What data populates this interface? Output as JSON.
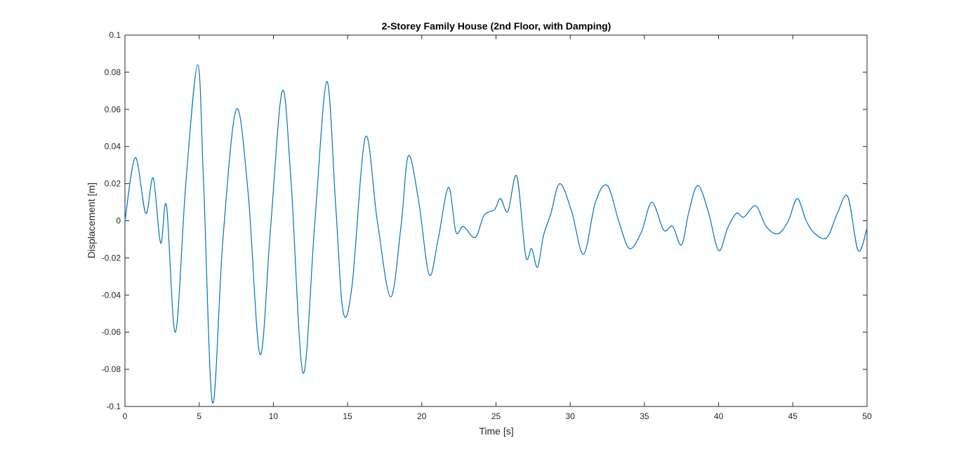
{
  "chart_data": {
    "type": "line",
    "title": "2-Storey Family House (2nd Floor, with Damping)",
    "xlabel": "Time [s]",
    "ylabel": "Displacement [m]",
    "xlim": [
      0,
      50
    ],
    "ylim": [
      -0.1,
      0.1
    ],
    "xticks": [
      0,
      5,
      10,
      15,
      20,
      25,
      30,
      35,
      40,
      45,
      50
    ],
    "yticks": [
      -0.1,
      -0.08,
      -0.06,
      -0.04,
      -0.02,
      0,
      0.02,
      0.04,
      0.06,
      0.08,
      0.1
    ],
    "xtick_labels": [
      "0",
      "5",
      "10",
      "15",
      "20",
      "25",
      "30",
      "35",
      "40",
      "45",
      "50"
    ],
    "ytick_labels": [
      "-0.1",
      "-0.08",
      "-0.06",
      "-0.04",
      "-0.02",
      "0",
      "0.02",
      "0.04",
      "0.06",
      "0.08",
      "0.1"
    ],
    "grid": false,
    "box": true,
    "series": [
      {
        "color": "#0072BD",
        "x": [
          0,
          0.7,
          1.4,
          1.9,
          2.4,
          2.8,
          3.4,
          4.1,
          4.9,
          5.3,
          5.9,
          6.6,
          7.5,
          8.3,
          9.1,
          9.8,
          10.6,
          11.2,
          12.0,
          12.8,
          13.6,
          14.2,
          14.7,
          15.3,
          16.2,
          17.0,
          17.9,
          18.6,
          19.1,
          19.8,
          20.5,
          21.1,
          21.8,
          22.3,
          22.8,
          23.6,
          24.2,
          24.9,
          25.3,
          25.8,
          26.4,
          27.0,
          27.4,
          27.8,
          28.2,
          28.7,
          29.3,
          30.1,
          30.9,
          31.7,
          32.5,
          33.3,
          34.0,
          34.8,
          35.5,
          36.3,
          36.9,
          37.5,
          38.0,
          38.6,
          39.3,
          40.0,
          40.6,
          41.2,
          41.7,
          42.5,
          43.2,
          44.0,
          44.7,
          45.3,
          45.9,
          46.5,
          47.3,
          48.0,
          48.7,
          49.4,
          50.0
        ],
        "y": [
          0.0,
          0.034,
          0.004,
          0.023,
          -0.012,
          0.008,
          -0.06,
          0.02,
          0.084,
          0.02,
          -0.098,
          -0.01,
          0.06,
          0.015,
          -0.072,
          -0.005,
          0.07,
          0.02,
          -0.082,
          0.0,
          0.075,
          0.008,
          -0.049,
          -0.035,
          0.045,
          0.0,
          -0.041,
          -0.003,
          0.035,
          0.01,
          -0.029,
          -0.01,
          0.018,
          -0.006,
          -0.003,
          -0.009,
          0.003,
          0.006,
          0.012,
          0.005,
          0.024,
          -0.019,
          -0.015,
          -0.025,
          -0.008,
          0.004,
          0.02,
          0.005,
          -0.018,
          0.01,
          0.019,
          -0.001,
          -0.015,
          -0.006,
          0.01,
          -0.005,
          -0.003,
          -0.013,
          0.005,
          0.019,
          0.005,
          -0.016,
          -0.004,
          0.004,
          0.002,
          0.008,
          -0.003,
          -0.007,
          0.0,
          0.012,
          0.0,
          -0.007,
          -0.009,
          0.004,
          0.013,
          -0.016,
          -0.004
        ]
      }
    ]
  }
}
